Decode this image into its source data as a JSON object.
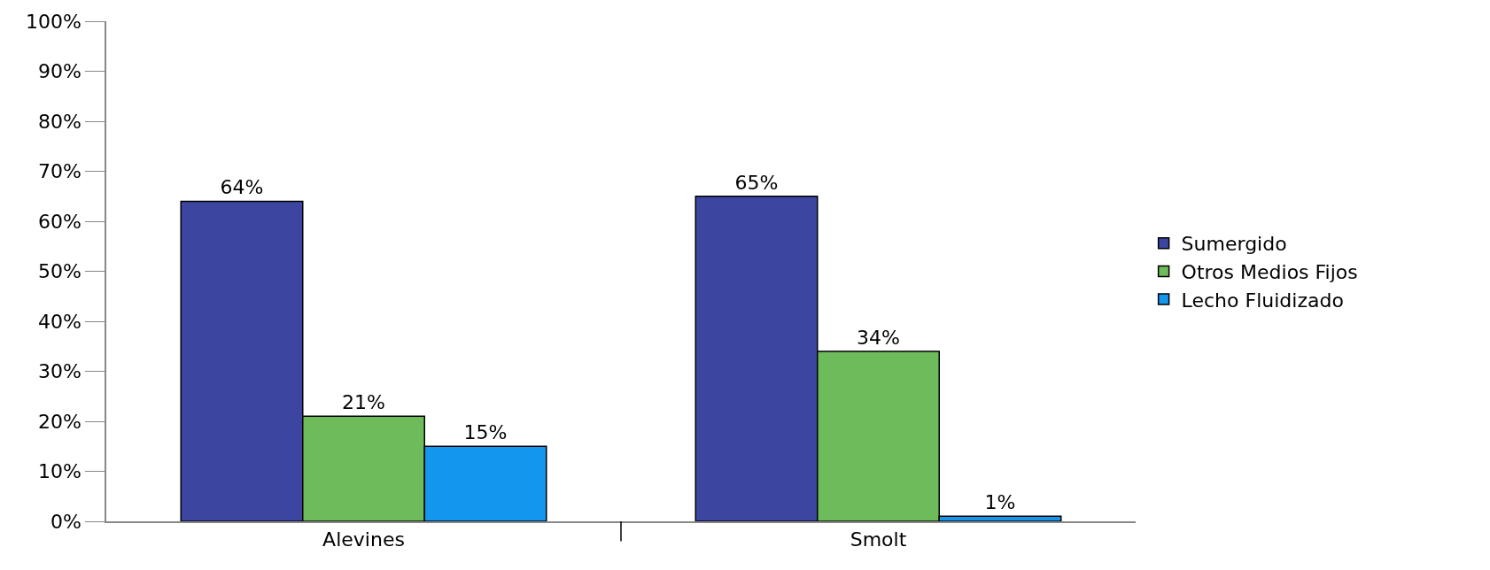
{
  "chart_data": {
    "type": "bar",
    "categories": [
      "Alevines",
      "Smolt"
    ],
    "series": [
      {
        "name": "Sumergido",
        "color": "#3c46a0",
        "values": [
          64,
          65
        ],
        "value_labels": [
          "64%",
          "65%"
        ]
      },
      {
        "name": "Otros Medios Fijos",
        "color": "#6dbb5a",
        "values": [
          21,
          34
        ],
        "value_labels": [
          "21%",
          "34%"
        ]
      },
      {
        "name": "Lecho Fluidizado",
        "color": "#1396ee",
        "values": [
          15,
          1
        ],
        "value_labels": [
          "15%",
          "1%"
        ]
      }
    ],
    "ylim": [
      0,
      100
    ],
    "yticks": [
      {
        "value": 0,
        "label": "0%"
      },
      {
        "value": 10,
        "label": "10%"
      },
      {
        "value": 20,
        "label": "20%"
      },
      {
        "value": 30,
        "label": "30%"
      },
      {
        "value": 40,
        "label": "40%"
      },
      {
        "value": 50,
        "label": "50%"
      },
      {
        "value": 60,
        "label": "60%"
      },
      {
        "value": 70,
        "label": "70%"
      },
      {
        "value": 80,
        "label": "80%"
      },
      {
        "value": 90,
        "label": "90%"
      },
      {
        "value": 100,
        "label": "100%"
      }
    ],
    "legend": "right"
  }
}
